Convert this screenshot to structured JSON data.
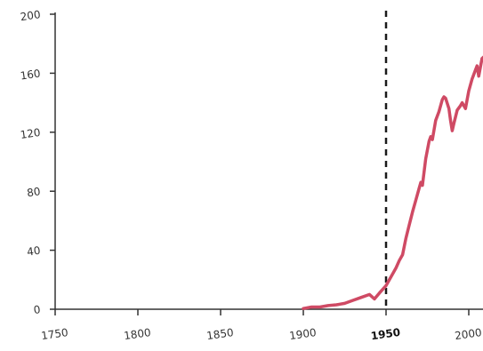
{
  "chart_data": {
    "type": "line",
    "title": "",
    "xlabel": "",
    "ylabel": "",
    "xlim": [
      1750,
      2010
    ],
    "ylim": [
      0,
      200
    ],
    "x_ticks": [
      "1750",
      "1800",
      "1850",
      "1900",
      "1950",
      "2000"
    ],
    "y_ticks": [
      "200",
      "160",
      "120",
      "80",
      "40",
      "0"
    ],
    "emphasized_x_tick": "1950",
    "grid": false,
    "legend": "none",
    "reference_line": {
      "x": 1950,
      "style": "dashed",
      "color": "#1a1a1a"
    },
    "series": [
      {
        "color": "#cf4a64",
        "x": [
          1900,
          1905,
          1910,
          1915,
          1920,
          1925,
          1930,
          1935,
          1940,
          1943,
          1946,
          1950,
          1953,
          1956,
          1958,
          1960,
          1962,
          1964,
          1966,
          1968,
          1970,
          1971,
          1972,
          1974,
          1976,
          1977,
          1978,
          1980,
          1982,
          1984,
          1985,
          1986,
          1988,
          1989,
          1990,
          1991,
          1993,
          1995,
          1996,
          1998,
          2000,
          2002,
          2004,
          2005,
          2006,
          2008,
          2010
        ],
        "y": [
          0.5,
          1.5,
          1.5,
          2.5,
          3,
          4,
          6,
          8,
          10,
          7,
          11,
          16,
          22,
          28,
          33,
          37,
          48,
          57,
          66,
          74,
          82,
          86,
          84,
          102,
          114,
          117,
          115,
          128,
          134,
          142,
          144,
          143,
          136,
          128,
          121,
          126,
          135,
          138,
          140,
          136,
          148,
          156,
          162,
          165,
          158,
          170,
          172
        ]
      }
    ]
  }
}
